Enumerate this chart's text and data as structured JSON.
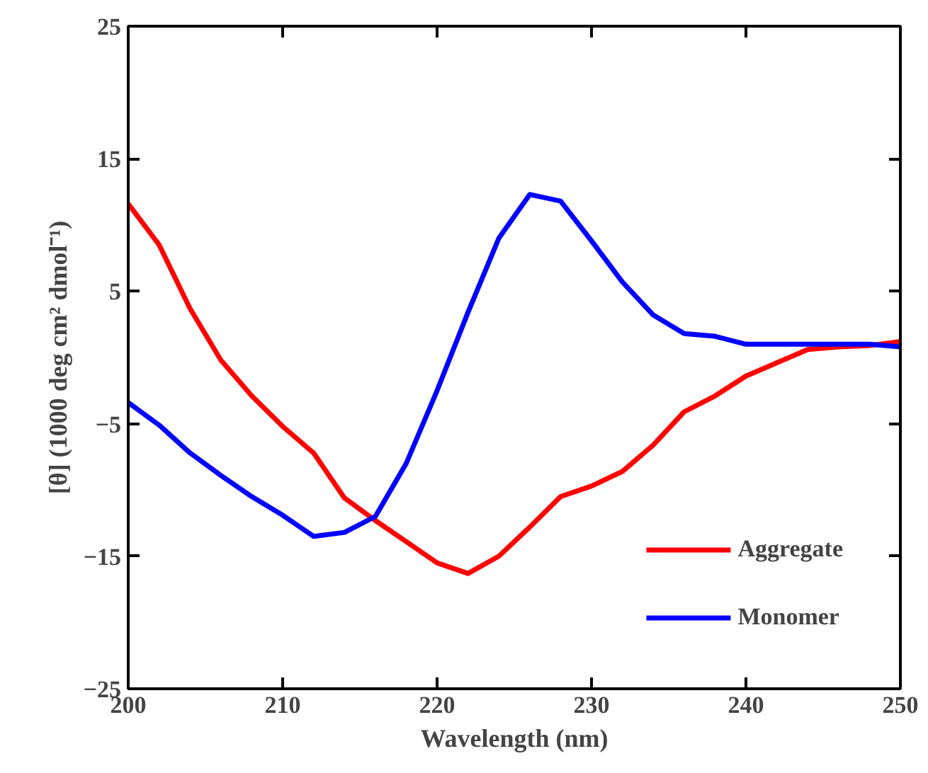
{
  "chart_data": {
    "type": "line",
    "xlabel": "Wavelength (nm)",
    "ylabel": "[θ] (1000 deg cm² dmol⁻¹)",
    "x": [
      200,
      202,
      204,
      206,
      208,
      210,
      212,
      214,
      216,
      218,
      220,
      222,
      224,
      226,
      228,
      230,
      232,
      234,
      236,
      238,
      240,
      242,
      244,
      246,
      248,
      250
    ],
    "series": [
      {
        "name": "Aggregate",
        "color": "#ff0000",
        "values": [
          11.6,
          8.5,
          3.7,
          -0.2,
          -2.9,
          -5.2,
          -7.2,
          -10.6,
          -12.3,
          -13.9,
          -15.5,
          -16.3,
          -15.0,
          -12.8,
          -10.5,
          -9.7,
          -8.6,
          -6.6,
          -4.1,
          -2.9,
          -1.4,
          -0.4,
          0.6,
          0.8,
          0.9,
          1.2
        ]
      },
      {
        "name": "Monomer",
        "color": "#0000ff",
        "values": [
          -3.4,
          -5.1,
          -7.2,
          -8.9,
          -10.5,
          -11.9,
          -13.5,
          -13.2,
          -12.0,
          -8.0,
          -2.5,
          3.4,
          9.0,
          12.3,
          11.8,
          8.8,
          5.7,
          3.2,
          1.8,
          1.6,
          1.0,
          1.0,
          1.0,
          1.0,
          1.0,
          0.8
        ]
      }
    ],
    "xlim": [
      200,
      250
    ],
    "xticks": [
      200,
      210,
      220,
      230,
      240,
      250
    ],
    "ylim": [
      -25,
      25
    ],
    "yticks": [
      -25,
      -15,
      -5,
      5,
      15,
      25
    ],
    "grid": false,
    "legend": "bottom right",
    "line_style": "solid",
    "marker": "none"
  }
}
